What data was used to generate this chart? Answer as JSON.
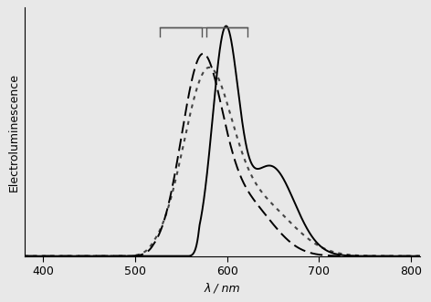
{
  "xlim": [
    380,
    810
  ],
  "ylim": [
    0,
    1.08
  ],
  "xlabel": "λ / nm",
  "ylabel": "Electroluminescence",
  "xticks": [
    400,
    500,
    600,
    700,
    800
  ],
  "background_color": "#e8e8e8",
  "plot_bg_color": "#e8e8e8",
  "curves": {
    "solid": {
      "color": "#000000",
      "linewidth": 1.4
    },
    "dashed": {
      "color": "#000000",
      "linewidth": 1.4
    },
    "dotted": {
      "color": "#444444",
      "linewidth": 1.5
    }
  },
  "axis_fontsize": 9,
  "tick_fontsize": 9,
  "ylabel_fontsize": 9
}
